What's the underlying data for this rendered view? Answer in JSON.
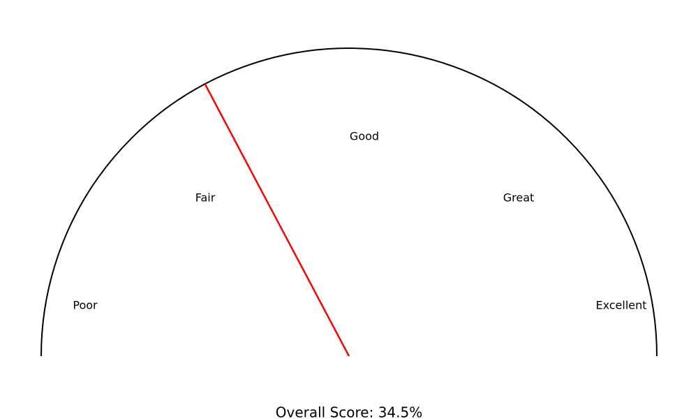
{
  "chart_data": {
    "type": "gauge",
    "categories": [
      "Poor",
      "Fair",
      "Good",
      "Great",
      "Excellent"
    ],
    "range": [
      0,
      100
    ],
    "value": 34.5,
    "value_unit": "%",
    "score_label": "Overall Score: 34.5%",
    "needle_color": "#ff0000",
    "arc_color": "#000000",
    "grid": false
  }
}
